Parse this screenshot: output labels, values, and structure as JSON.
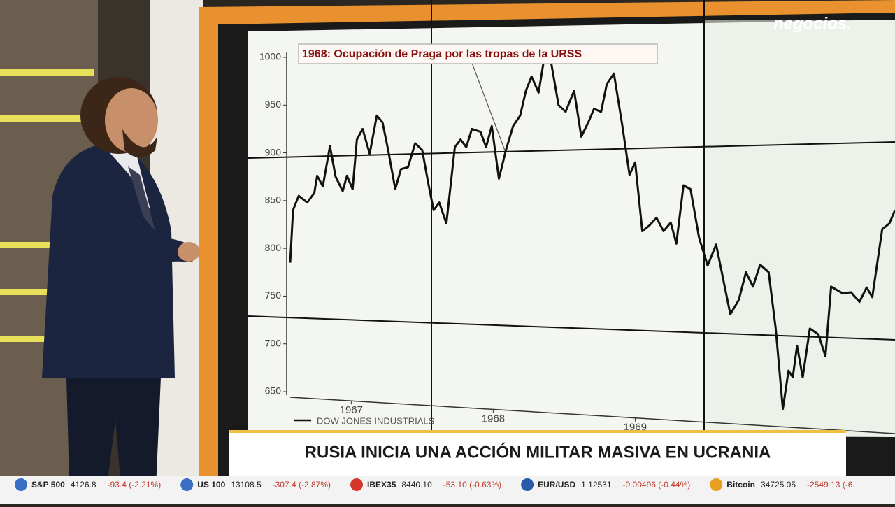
{
  "logo": "negocios.",
  "headline": "RUSIA INICIA UNA ACCIÓN MILITAR MASIVA EN UCRANIA",
  "ticker": [
    {
      "name": "S&P 500",
      "price": "4126.8",
      "change": "-93.4 (-2.21%)"
    },
    {
      "name": "US 100",
      "price": "13108.5",
      "change": "-307.4 (-2.87%)"
    },
    {
      "name": "IBEX35",
      "price": "8440.10",
      "change": "-53.10 (-0.63%)"
    },
    {
      "name": "EUR/USD",
      "price": "1.12531",
      "change": "-0.00496 (-0.44%)"
    },
    {
      "name": "Bitcoin",
      "price": "34725.05",
      "change": "-2549.13 (-6."
    }
  ],
  "chart_data": {
    "type": "line",
    "annotation": "1968: Ocupación de Praga por las tropas de la URSS",
    "x": [
      1967.07,
      1967.09,
      1967.13,
      1967.19,
      1967.24,
      1967.26,
      1967.3,
      1967.35,
      1967.39,
      1967.44,
      1967.47,
      1967.51,
      1967.54,
      1967.58,
      1967.63,
      1967.68,
      1967.72,
      1967.76,
      1967.81,
      1967.85,
      1967.9,
      1967.95,
      1968.0,
      1968.04,
      1968.08,
      1968.12,
      1968.17,
      1968.23,
      1968.27,
      1968.31,
      1968.35,
      1968.41,
      1968.45,
      1968.49,
      1968.54,
      1968.59,
      1968.64,
      1968.69,
      1968.73,
      1968.77,
      1968.82,
      1968.86,
      1968.91,
      1968.96,
      1969.01,
      1969.07,
      1969.12,
      1969.17,
      1969.21,
      1969.26,
      1969.3,
      1969.35,
      1969.41,
      1969.46,
      1969.5,
      1969.55,
      1969.6,
      1969.65,
      1969.7,
      1969.75,
      1969.79,
      1969.84,
      1969.89,
      1969.95,
      1970.01,
      1970.07,
      1970.17,
      1970.23,
      1970.28,
      1970.33,
      1970.38,
      1970.44,
      1970.49,
      1970.54,
      1970.58,
      1970.61,
      1970.64,
      1970.68,
      1970.73,
      1970.79,
      1970.84,
      1970.88,
      1970.96,
      1971.02,
      1971.08,
      1971.13,
      1971.17,
      1971.24,
      1971.29,
      1971.33
    ],
    "series": [
      {
        "name": "DOW JONES INDUSTRIALS",
        "color": "#111111",
        "values": [
          785,
          840,
          855,
          848,
          858,
          876,
          865,
          907,
          875,
          860,
          876,
          862,
          914,
          925,
          899,
          939,
          932,
          903,
          862,
          883,
          885,
          910,
          903,
          870,
          840,
          848,
          826,
          906,
          914,
          906,
          925,
          922,
          906,
          928,
          873,
          903,
          928,
          939,
          965,
          980,
          963,
          1000,
          993,
          950,
          943,
          965,
          917,
          932,
          946,
          943,
          972,
          983,
          928,
          877,
          890,
          818,
          824,
          832,
          818,
          827,
          805,
          866,
          862,
          811,
          782,
          804,
          731,
          746,
          775,
          760,
          783,
          775,
          716,
          632,
          672,
          665,
          698,
          665,
          716,
          710,
          687,
          760,
          753,
          754,
          744,
          759,
          749,
          820,
          826,
          840
        ]
      }
    ],
    "xlim": [
      1967.07,
      1971.33
    ],
    "xticks": [
      {
        "value": 1967.5,
        "label": "1967"
      },
      {
        "value": 1968.5,
        "label": "1968"
      },
      {
        "value": 1969.5,
        "label": "1969"
      }
    ],
    "ylim": [
      650,
      1000
    ],
    "yticks": [
      650,
      700,
      750,
      800,
      850,
      900,
      950,
      1000
    ]
  }
}
